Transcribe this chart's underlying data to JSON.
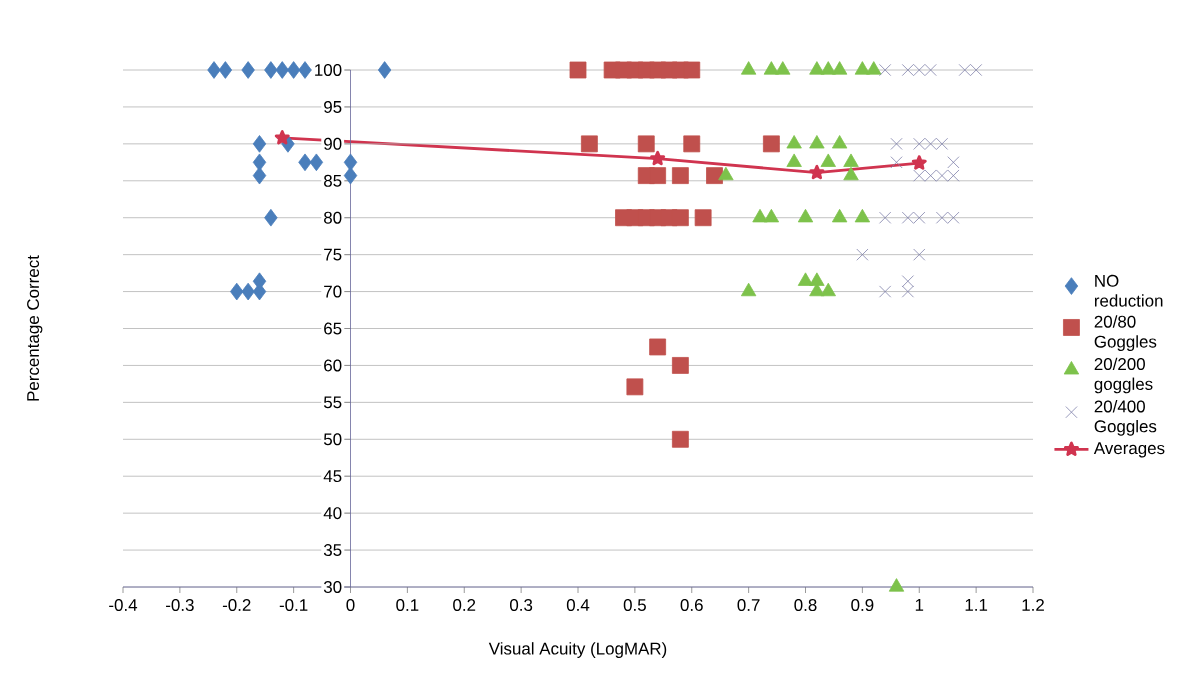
{
  "chart_data": {
    "type": "scatter",
    "xlabel": "Visual Acuity (LogMAR)",
    "ylabel": "Percentage Correct",
    "xlim": [
      -0.4,
      1.2
    ],
    "xticks": [
      -0.4,
      -0.3,
      -0.2,
      -0.1,
      0,
      0.1,
      0.2,
      0.3,
      0.4,
      0.5,
      0.6,
      0.7,
      0.8,
      0.9,
      1,
      1.1,
      1.2
    ],
    "ylim": [
      30,
      100
    ],
    "yticks": [
      30,
      35,
      40,
      45,
      50,
      55,
      60,
      65,
      70,
      75,
      80,
      85,
      90,
      95,
      100
    ],
    "grid": "y",
    "legend": "right",
    "series": [
      {
        "name": "NO reduction",
        "color": "#4a7ebb",
        "marker": "diamond",
        "x": [
          -0.24,
          -0.22,
          -0.18,
          -0.14,
          -0.12,
          -0.1,
          -0.08,
          0.06,
          -0.16,
          -0.11,
          -0.16,
          -0.08,
          -0.06,
          0,
          -0.16,
          0,
          -0.14,
          -0.2,
          -0.18,
          -0.16,
          -0.16
        ],
        "values": [
          100,
          100,
          100,
          100,
          100,
          100,
          100,
          100,
          90,
          90,
          87.5,
          87.5,
          87.5,
          87.5,
          85.7,
          85.7,
          80,
          70,
          70,
          70,
          71.4
        ]
      },
      {
        "name": "20/80 Goggles",
        "color": "#c0504d",
        "marker": "square",
        "x": [
          0.4,
          0.46,
          0.48,
          0.5,
          0.52,
          0.54,
          0.56,
          0.58,
          0.6,
          0.42,
          0.52,
          0.6,
          0.74,
          0.52,
          0.54,
          0.58,
          0.64,
          0.48,
          0.5,
          0.52,
          0.54,
          0.56,
          0.58,
          0.62,
          0.54,
          0.58,
          0.5,
          0.58
        ],
        "values": [
          100,
          100,
          100,
          100,
          100,
          100,
          100,
          100,
          100,
          90,
          90,
          90,
          90,
          85.7,
          85.7,
          85.7,
          85.7,
          80,
          80,
          80,
          80,
          80,
          80,
          80,
          62.5,
          60,
          57.1,
          50
        ]
      },
      {
        "name": "20/200 goggles",
        "color": "#7dc24b",
        "marker": "triangle",
        "x": [
          0.7,
          0.74,
          0.76,
          0.82,
          0.84,
          0.86,
          0.9,
          0.92,
          0.78,
          0.82,
          0.86,
          0.78,
          0.84,
          0.88,
          0.66,
          0.88,
          0.72,
          0.74,
          0.8,
          0.86,
          0.9,
          0.7,
          0.8,
          0.82,
          0.82,
          0.84,
          0.96
        ],
        "values": [
          100,
          100,
          100,
          100,
          100,
          100,
          100,
          100,
          90,
          90,
          90,
          87.5,
          87.5,
          87.5,
          85.7,
          85.7,
          80,
          80,
          80,
          80,
          80,
          70,
          71.4,
          71.4,
          70,
          70,
          30
        ]
      },
      {
        "name": "20/400 Goggles",
        "color": "#7f80aa",
        "marker": "cross",
        "x": [
          0.94,
          0.98,
          1,
          1.02,
          1.08,
          1.1,
          0.96,
          1,
          1.02,
          1.04,
          0.96,
          1.06,
          1,
          1.02,
          1.04,
          1.06,
          0.94,
          0.98,
          1,
          1.04,
          1.06,
          0.9,
          1,
          0.98,
          0.94,
          0.98
        ],
        "values": [
          100,
          100,
          100,
          100,
          100,
          100,
          90,
          90,
          90,
          90,
          87.5,
          87.5,
          85.7,
          85.7,
          85.7,
          85.7,
          80,
          80,
          80,
          80,
          80,
          75,
          75,
          71.4,
          70,
          70
        ]
      },
      {
        "name": "Averages",
        "type": "line",
        "color": "#d0344f",
        "marker": "star",
        "line_style": "solid",
        "x": [
          -0.12,
          0.54,
          0.82,
          1
        ],
        "values": [
          90.8,
          88,
          86.1,
          87.4
        ]
      }
    ]
  }
}
